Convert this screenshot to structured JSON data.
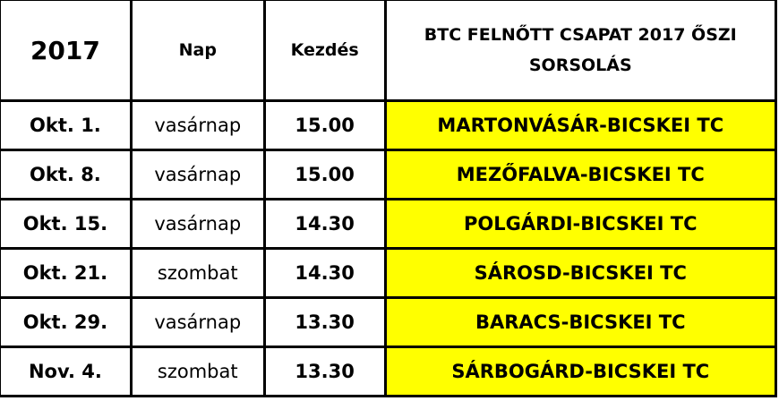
{
  "header": {
    "year": "2017",
    "day": "Nap",
    "start": "Kezdés",
    "title": "BTC FELNŐTT CSAPAT 2017 ŐSZI SORSOLÁS"
  },
  "highlight_color": "#ffff00",
  "rows": [
    {
      "date": "Okt. 1.",
      "day": "vasárnap",
      "time": "15.00",
      "match": "MARTONVÁSÁR-BICSKEI TC"
    },
    {
      "date": "Okt. 8.",
      "day": "vasárnap",
      "time": "15.00",
      "match": "MEZŐFALVA-BICSKEI TC"
    },
    {
      "date": "Okt. 15.",
      "day": "vasárnap",
      "time": "14.30",
      "match": "POLGÁRDI-BICSKEI TC"
    },
    {
      "date": "Okt. 21.",
      "day": "szombat",
      "time": "14.30",
      "match": "SÁROSD-BICSKEI TC"
    },
    {
      "date": "Okt. 29.",
      "day": "vasárnap",
      "time": "13.30",
      "match": "BARACS-BICSKEI TC"
    },
    {
      "date": "Nov. 4.",
      "day": "szombat",
      "time": "13.30",
      "match": "SÁRBOGÁRD-BICSKEI TC"
    }
  ]
}
